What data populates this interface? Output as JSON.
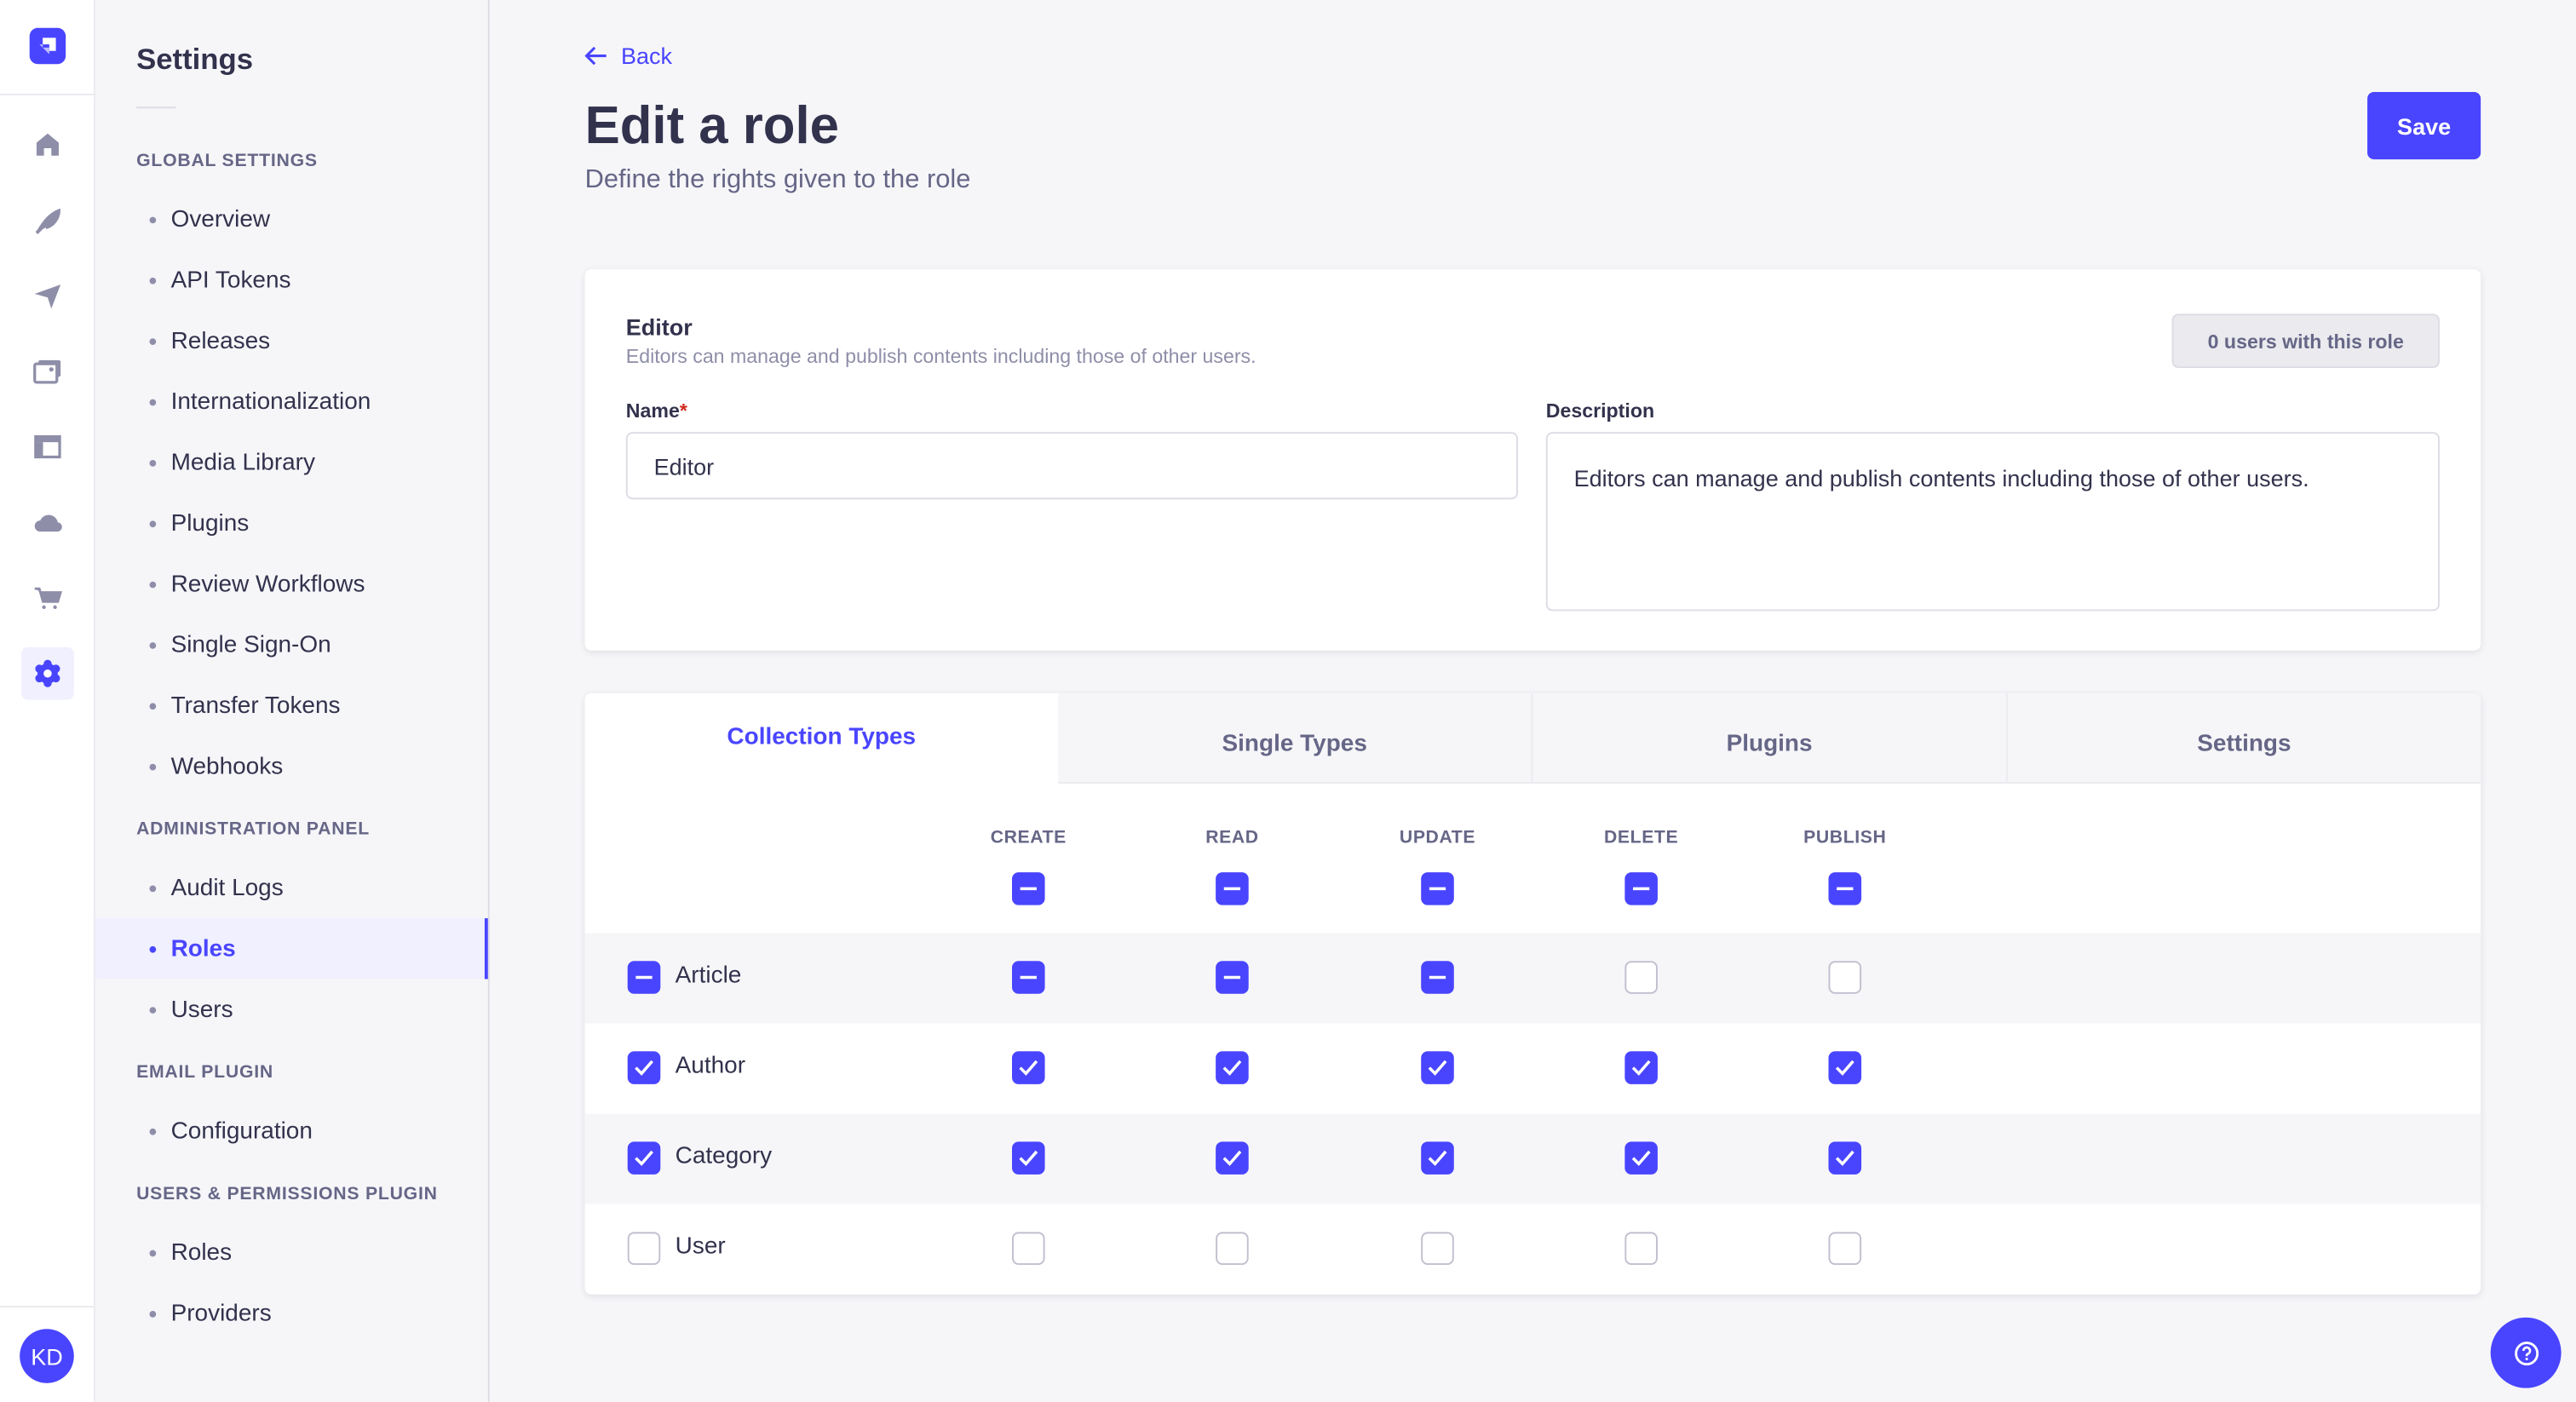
{
  "rail": {
    "icons": [
      "home-icon",
      "feather-icon",
      "paper-plane-icon",
      "media-icon",
      "layout-icon",
      "cloud-icon",
      "cart-icon",
      "settings-icon"
    ],
    "avatar": "KD"
  },
  "subnav": {
    "title": "Settings",
    "sections": [
      {
        "title": "GLOBAL SETTINGS",
        "items": [
          "Overview",
          "API Tokens",
          "Releases",
          "Internationalization",
          "Media Library",
          "Plugins",
          "Review Workflows",
          "Single Sign-On",
          "Transfer Tokens",
          "Webhooks"
        ]
      },
      {
        "title": "ADMINISTRATION PANEL",
        "items": [
          "Audit Logs",
          "Roles",
          "Users"
        ],
        "active": "Roles"
      },
      {
        "title": "EMAIL PLUGIN",
        "items": [
          "Configuration"
        ]
      },
      {
        "title": "USERS & PERMISSIONS PLUGIN",
        "items": [
          "Roles",
          "Providers"
        ]
      }
    ]
  },
  "header": {
    "back": "Back",
    "title": "Edit a role",
    "subtitle": "Define the rights given to the role",
    "save": "Save"
  },
  "role": {
    "name": "Editor",
    "description": "Editors can manage and publish contents including those of other users.",
    "users_badge": "0 users with this role",
    "name_label": "Name",
    "required_mark": "*",
    "description_label": "Description",
    "name_value": "Editor",
    "description_value": "Editors can manage and publish contents including those of other users."
  },
  "tabs": [
    {
      "label": "Collection Types",
      "active": true
    },
    {
      "label": "Single Types"
    },
    {
      "label": "Plugins"
    },
    {
      "label": "Settings"
    }
  ],
  "permissions": {
    "columns": [
      "CREATE",
      "READ",
      "UPDATE",
      "DELETE",
      "PUBLISH"
    ],
    "header_states": [
      "indeterminate",
      "indeterminate",
      "indeterminate",
      "indeterminate",
      "indeterminate"
    ],
    "rows": [
      {
        "label": "Article",
        "state": "indeterminate",
        "cells": [
          "indeterminate",
          "indeterminate",
          "indeterminate",
          "unchecked",
          "unchecked"
        ]
      },
      {
        "label": "Author",
        "state": "checked",
        "cells": [
          "checked",
          "checked",
          "checked",
          "checked",
          "checked"
        ]
      },
      {
        "label": "Category",
        "state": "checked",
        "cells": [
          "checked",
          "checked",
          "checked",
          "checked",
          "checked"
        ]
      },
      {
        "label": "User",
        "state": "unchecked",
        "cells": [
          "unchecked",
          "unchecked",
          "unchecked",
          "unchecked",
          "unchecked"
        ]
      }
    ]
  },
  "colors": {
    "primary": "#4945ff",
    "text": "#32324d",
    "muted": "#666687"
  }
}
